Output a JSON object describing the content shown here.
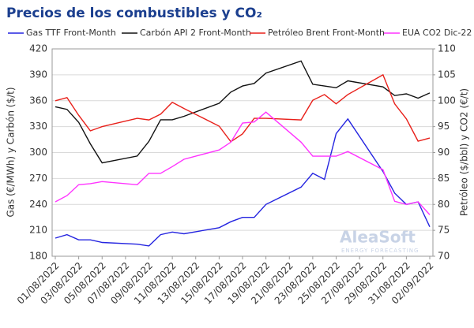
{
  "chart_data": {
    "type": "line",
    "title": "Precios de los combustibles y CO₂",
    "ylabel": "Gas (€/MWh) y Carbón ($/t)",
    "y2label": "Petróleo ($/bbl) y CO2 (€/t)",
    "watermark": "AleaSoft",
    "watermark_sub": "ENERGY FORECASTING",
    "x": [
      "01/08/2022",
      "02/08/2022",
      "03/08/2022",
      "04/08/2022",
      "05/08/2022",
      "08/08/2022",
      "09/08/2022",
      "10/08/2022",
      "11/08/2022",
      "12/08/2022",
      "15/08/2022",
      "16/08/2022",
      "17/08/2022",
      "18/08/2022",
      "19/08/2022",
      "22/08/2022",
      "23/08/2022",
      "24/08/2022",
      "25/08/2022",
      "26/08/2022",
      "29/08/2022",
      "30/08/2022",
      "31/08/2022",
      "01/09/2022",
      "02/09/2022"
    ],
    "xlim": [
      "01/08/2022",
      "02/09/2022"
    ],
    "xticks": [
      "01/08/2022",
      "03/08/2022",
      "05/08/2022",
      "07/08/2022",
      "09/08/2022",
      "11/08/2022",
      "13/08/2022",
      "15/08/2022",
      "17/08/2022",
      "19/08/2022",
      "21/08/2022",
      "23/08/2022",
      "25/08/2022",
      "27/08/2022",
      "29/08/2022",
      "31/08/2022",
      "02/09/2022"
    ],
    "ylim": [
      180,
      420
    ],
    "yticks": [
      180,
      210,
      240,
      270,
      300,
      330,
      360,
      390,
      420
    ],
    "y2lim": [
      70,
      110
    ],
    "y2ticks": [
      70,
      75,
      80,
      85,
      90,
      95,
      100,
      105,
      110
    ],
    "grid": true,
    "series": [
      {
        "name": "Gas TTF Front-Month",
        "color": "#2424e0",
        "values": [
          201,
          205,
          199,
          199,
          196,
          194,
          192,
          205,
          208,
          206,
          213,
          220,
          225,
          225,
          240,
          260,
          276,
          269,
          322,
          339,
          278,
          253,
          240,
          243,
          214
        ]
      },
      {
        "name": "Carbón API 2 Front-Month",
        "color": "#111111",
        "values": [
          353,
          350,
          335,
          310,
          288,
          296,
          313,
          338,
          338,
          342,
          357,
          370,
          377,
          380,
          392,
          406,
          379,
          377,
          375,
          383,
          376,
          366,
          368,
          363,
          369
        ]
      },
      {
        "name": "Petróleo Brent Front-Month",
        "color": "#e8201a",
        "axis": "y2",
        "values": [
          100,
          100.6,
          97.2,
          94.2,
          95,
          96.6,
          96.3,
          97.4,
          99.7,
          98.5,
          95.1,
          92.1,
          93.6,
          96.6,
          96.6,
          96.3,
          100.1,
          101.2,
          99.4,
          101.2,
          105,
          99.4,
          96.5,
          92.2,
          92.8
        ]
      },
      {
        "name": "EUA CO2 Dic-22",
        "color": "#ff33ff",
        "axis": "y2",
        "values": [
          80.5,
          81.7,
          83.8,
          84,
          84.4,
          83.8,
          86,
          86,
          87.3,
          88.7,
          90.5,
          92,
          95.7,
          95.9,
          97.8,
          92,
          89.3,
          89.3,
          89.3,
          90.2,
          86.7,
          80.6,
          80,
          80.5,
          78
        ]
      }
    ]
  }
}
